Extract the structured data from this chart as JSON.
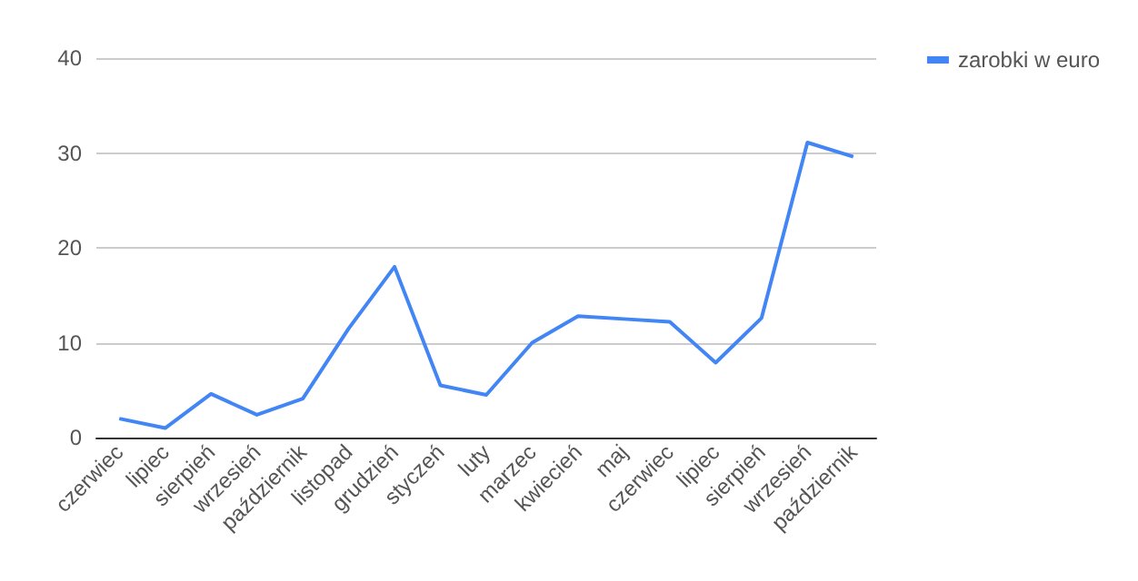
{
  "chart_data": {
    "type": "line",
    "categories": [
      "czerwiec",
      "lipiec",
      "sierpień",
      "wrzesień",
      "październik",
      "listopad",
      "grudzień",
      "styczeń",
      "luty",
      "marzec",
      "kwiecień",
      "maj",
      "czerwiec",
      "lipiec",
      "sierpień",
      "wrzesień",
      "październik"
    ],
    "series": [
      {
        "name": "zarobki w euro",
        "color": "#4285f4",
        "values": [
          2.0,
          1.0,
          4.6,
          2.4,
          4.1,
          11.5,
          18.0,
          5.5,
          4.5,
          10.0,
          12.8,
          12.5,
          12.2,
          7.9,
          12.6,
          31.1,
          29.6
        ]
      }
    ],
    "ylim": [
      0,
      40
    ],
    "yticks": [
      0,
      10,
      20,
      30,
      40
    ],
    "grid": "y",
    "legend": "top right",
    "marker": "none",
    "line_style": "solid"
  }
}
